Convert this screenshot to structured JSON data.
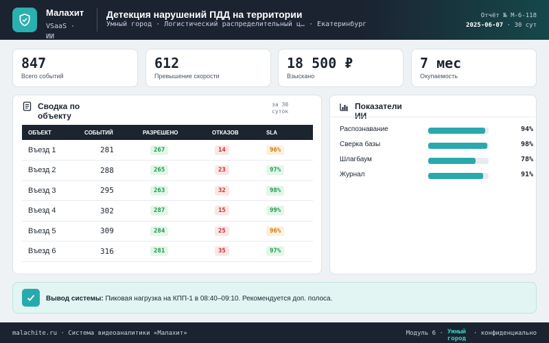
{
  "header": {
    "brand": "Малахит",
    "brand_sub": "VSaaS · ИИ",
    "title": "Детекция нарушений ПДД на территории",
    "crumbs": "Умный город · Логистический распределительный ц… · Екатеринбург",
    "report_id": "Отчёт № М-6-118",
    "report_date": "2025-06-07",
    "report_period": " · 30 сут"
  },
  "kpis": [
    {
      "value": "847",
      "label": "Всего событий"
    },
    {
      "value": "612",
      "label": "Превышение скорости"
    },
    {
      "value": "18 500 ₽",
      "label": "Взыскано"
    },
    {
      "value": "7 мес",
      "label": "Окупаемость"
    }
  ],
  "summary": {
    "title": "Сводка по объекту",
    "period": "за 30 суток",
    "columns": [
      "ОБЪЕКТ",
      "СОБЫТИЙ",
      "РАЗРЕШЕНО",
      "ОТКАЗОВ",
      "SLA"
    ],
    "rows": [
      {
        "name": "Въезд 1",
        "events": "281",
        "allowed": "267",
        "denied": "14",
        "sla": "96%"
      },
      {
        "name": "Въезд 2",
        "events": "288",
        "allowed": "265",
        "denied": "23",
        "sla": "97%"
      },
      {
        "name": "Въезд 3",
        "events": "295",
        "allowed": "263",
        "denied": "32",
        "sla": "98%"
      },
      {
        "name": "Въезд 4",
        "events": "302",
        "allowed": "287",
        "denied": "15",
        "sla": "99%"
      },
      {
        "name": "Въезд 5",
        "events": "309",
        "allowed": "284",
        "denied": "25",
        "sla": "96%"
      },
      {
        "name": "Въезд 6",
        "events": "316",
        "allowed": "281",
        "denied": "35",
        "sla": "97%"
      }
    ]
  },
  "ai": {
    "title": "Показатели ИИ",
    "items": [
      {
        "name": "Распознавание",
        "value": "94%",
        "fraction": 0.94
      },
      {
        "name": "Сверка базы",
        "value": "98%",
        "fraction": 0.98
      },
      {
        "name": "Шлагбаум",
        "value": "78%",
        "fraction": 0.78
      },
      {
        "name": "Журнал",
        "value": "91%",
        "fraction": 0.91
      }
    ]
  },
  "conclusion": {
    "label": "Вывод системы:",
    "text": " Пиковая нагрузка на КПП-1 в 08:40–09:10. Рекомендуется доп. полоса."
  },
  "footer": {
    "left": "malachite.ru · Система видеоаналитики «Малахит»",
    "module": "Модуль 6 ·",
    "accent": "Умный город",
    "right": "· конфиденциально"
  },
  "colors": {
    "accent": "#2aa9ad",
    "dark": "#1b2230"
  },
  "icons": {
    "logo": "shield-check-icon",
    "summary": "document-icon",
    "ai": "bar-chart-icon",
    "conclusion": "check-icon"
  }
}
